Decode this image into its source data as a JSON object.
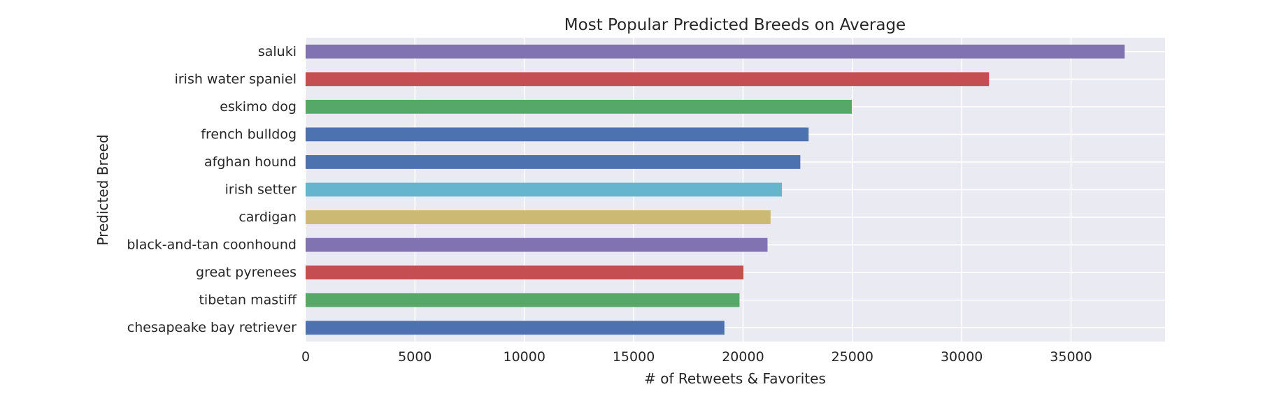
{
  "chart_data": {
    "type": "bar",
    "orientation": "horizontal",
    "title": "Most Popular Predicted Breeds on Average",
    "xlabel": "# of Retweets & Favorites",
    "ylabel": "Predicted Breed",
    "xlim": [
      0,
      39300
    ],
    "xticks": [
      0,
      5000,
      10000,
      15000,
      20000,
      25000,
      30000,
      35000
    ],
    "grid": true,
    "legend": "none",
    "categories": [
      "saluki",
      "irish water spaniel",
      "eskimo dog",
      "french bulldog",
      "afghan hound",
      "irish setter",
      "cardigan",
      "black-and-tan coonhound",
      "great pyrenees",
      "tibetan mastiff",
      "chesapeake bay retriever"
    ],
    "values": [
      37450,
      31250,
      24980,
      23000,
      22620,
      21780,
      21260,
      21120,
      20020,
      19840,
      19150
    ],
    "colors": [
      "#8172b2",
      "#c44e52",
      "#55a868",
      "#4c72b0",
      "#4c72b0",
      "#64b5cd",
      "#ccb974",
      "#8172b2",
      "#c44e52",
      "#55a868",
      "#4c72b0"
    ],
    "plot_background": "#eaeaf2",
    "grid_color": "#ffffff"
  }
}
